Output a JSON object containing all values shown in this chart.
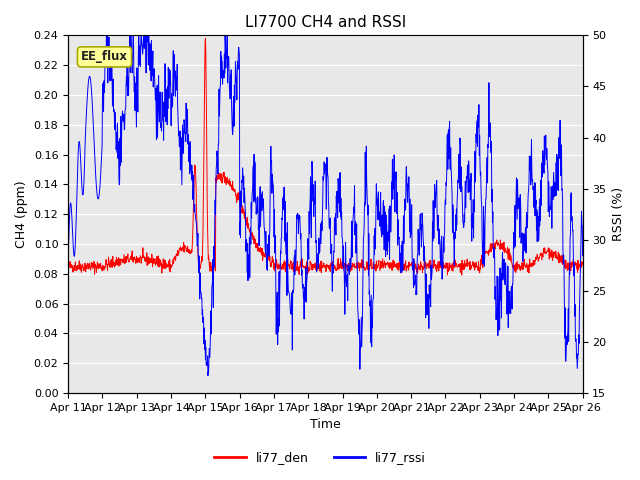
{
  "title": "LI7700 CH4 and RSSI",
  "xlabel": "Time",
  "ylabel_left": "CH4 (ppm)",
  "ylabel_right": "RSSI (%)",
  "ylim_left": [
    0.0,
    0.24
  ],
  "ylim_right": [
    15,
    50
  ],
  "yticks_left": [
    0.0,
    0.02,
    0.04,
    0.06,
    0.08,
    0.1,
    0.12,
    0.14,
    0.16,
    0.18,
    0.2,
    0.22,
    0.24
  ],
  "yticks_right": [
    15,
    20,
    25,
    30,
    35,
    40,
    45,
    50
  ],
  "xtick_labels": [
    "Apr 11",
    "Apr 12",
    "Apr 13",
    "Apr 14",
    "Apr 15",
    "Apr 16",
    "Apr 17",
    "Apr 18",
    "Apr 19",
    "Apr 20",
    "Apr 21",
    "Apr 22",
    "Apr 23",
    "Apr 24",
    "Apr 25",
    "Apr 26"
  ],
  "color_red": "#ff0000",
  "color_blue": "#0000ff",
  "legend_labels": [
    "li77_den",
    "li77_rssi"
  ],
  "annotation_text": "EE_flux",
  "annotation_bg": "#ffff99",
  "annotation_edge": "#aaaa00",
  "bg_color": "#ffffff",
  "plot_bg": "#e8e8e8",
  "title_fontsize": 11,
  "axis_fontsize": 9,
  "tick_fontsize": 8,
  "n_days": 15,
  "pts_per_day": 96
}
